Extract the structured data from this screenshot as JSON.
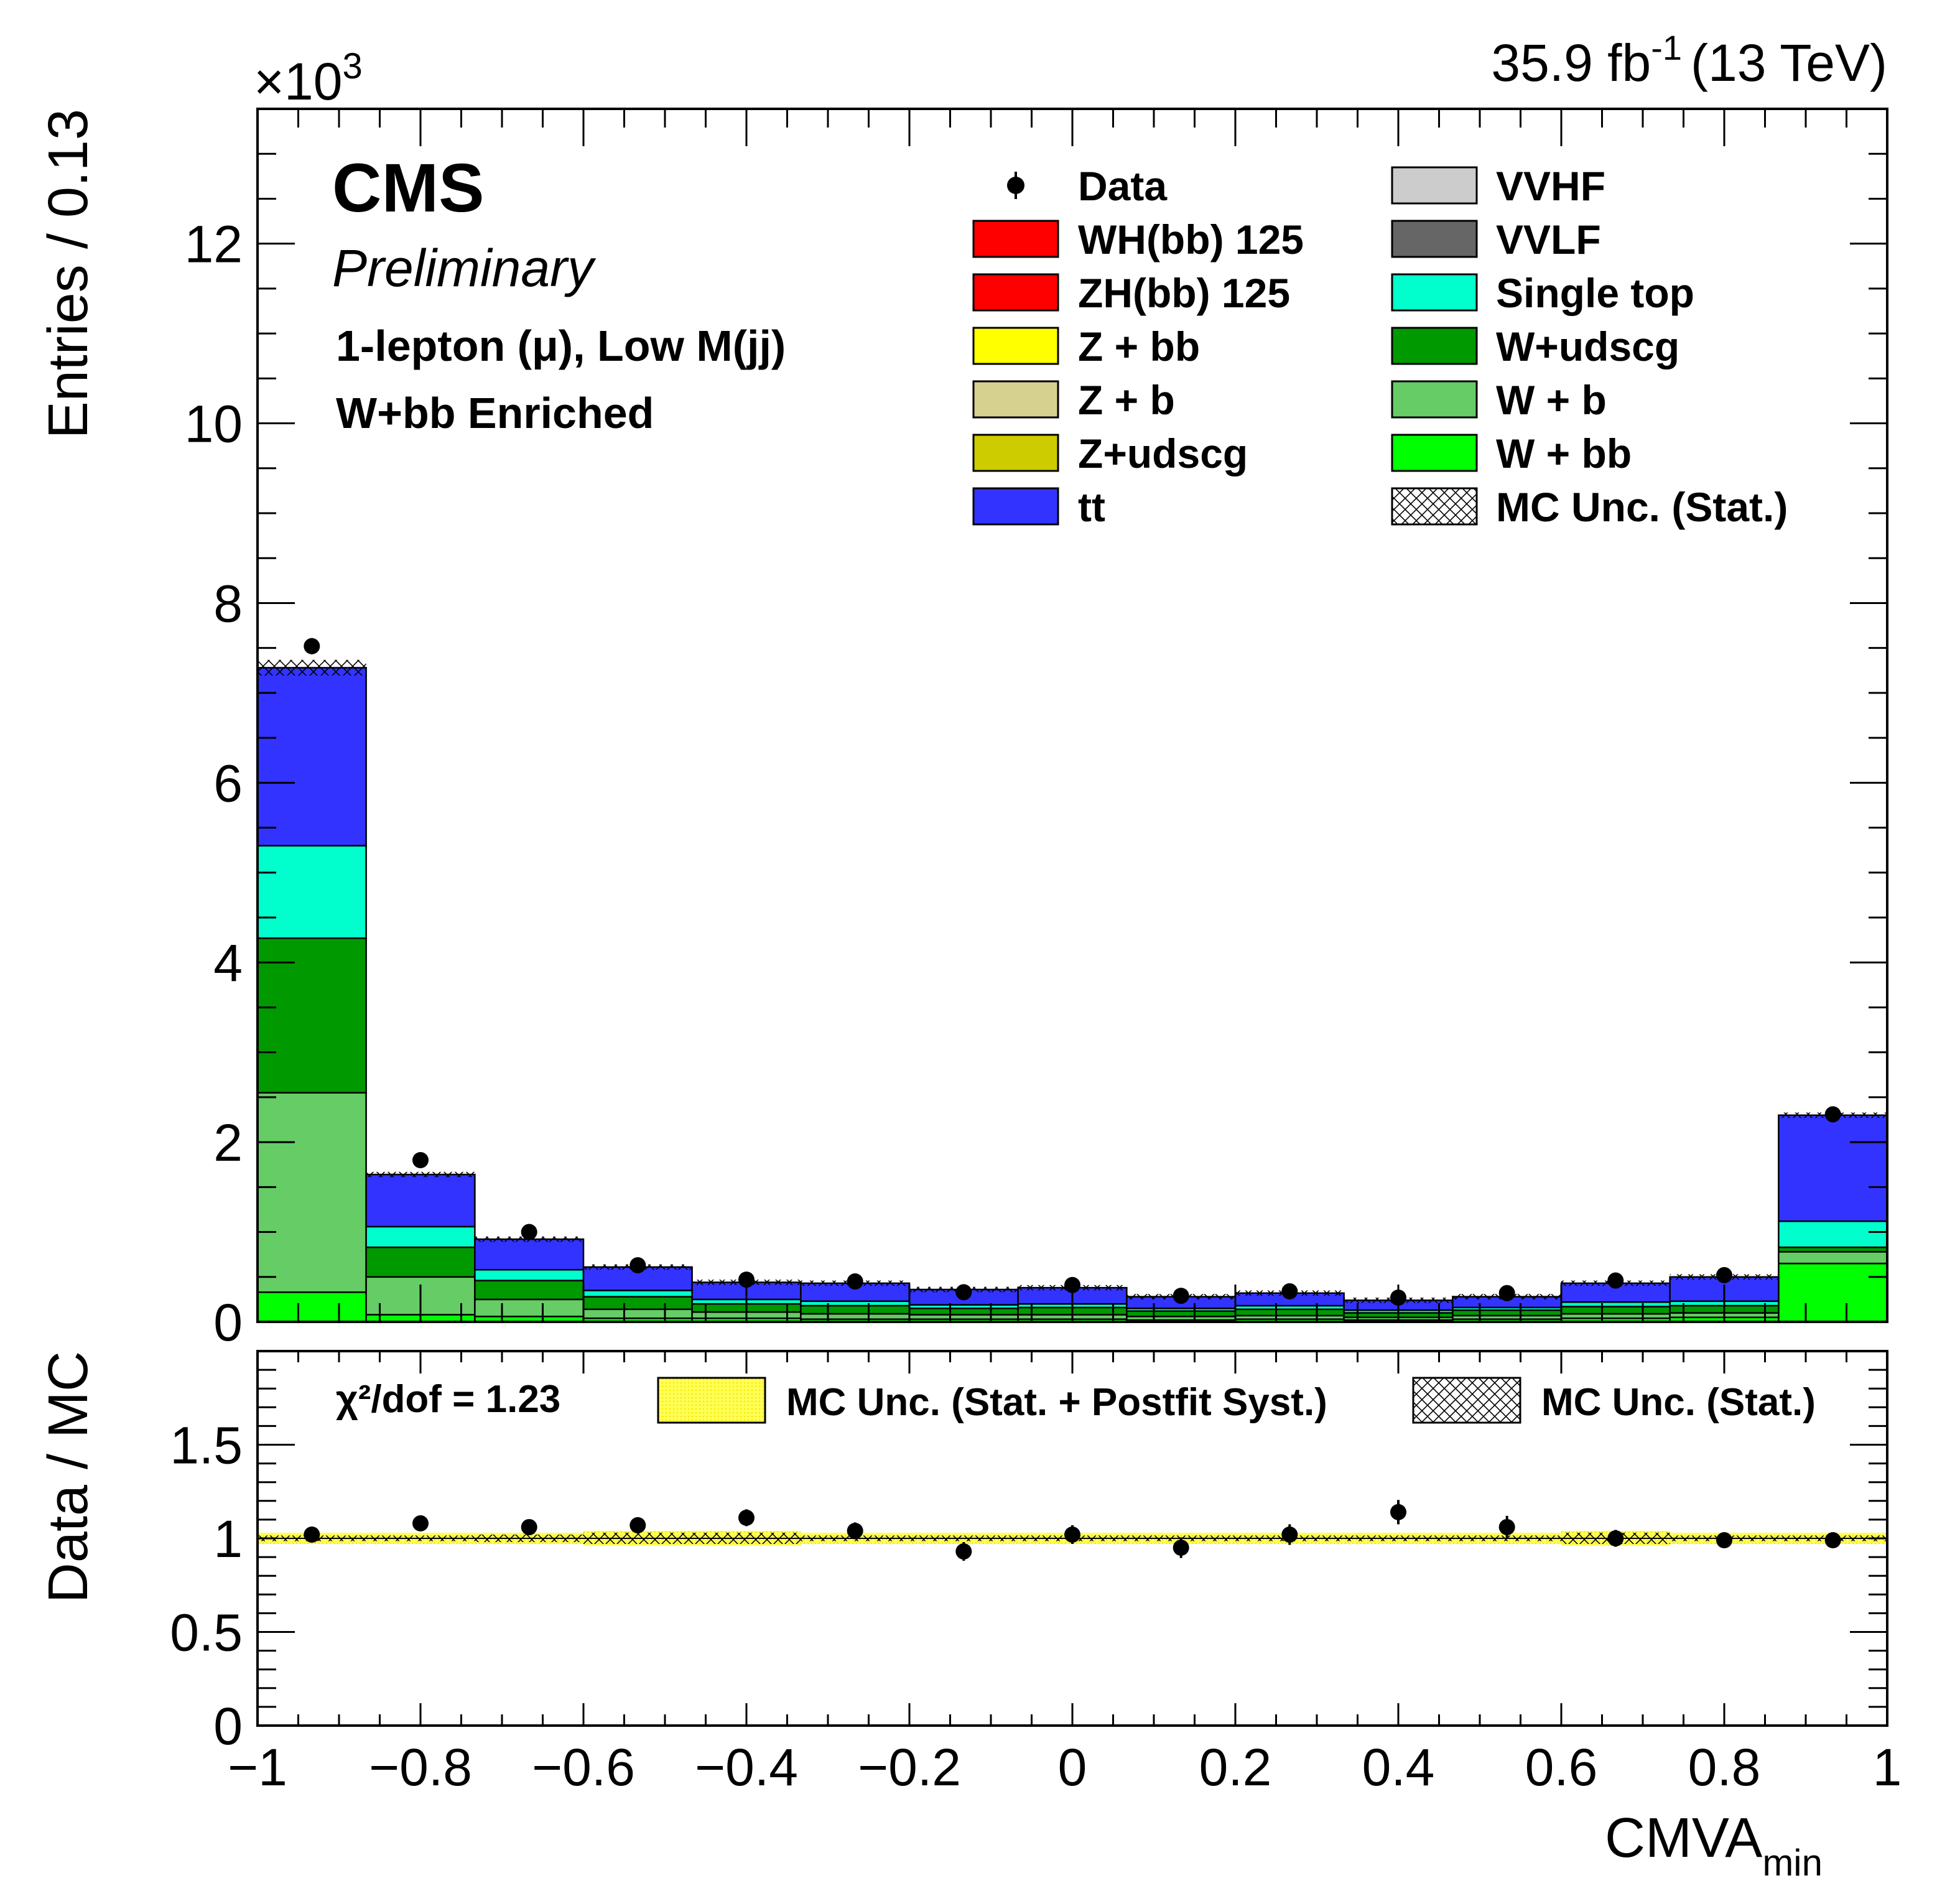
{
  "header": {
    "multiplier_base": "×10",
    "multiplier_exp": "3",
    "lumi_value": "35.9 fb",
    "lumi_exp": "-1",
    "lumi_energy": "(13 TeV)",
    "experiment": "CMS",
    "status": "Preliminary",
    "region_line1": "1-lepton (μ), Low M(jj)",
    "region_line2": "W+bb Enriched"
  },
  "upper_axis": {
    "ylabel": "Entries / 0.13",
    "ticks": [
      "0",
      "2",
      "4",
      "6",
      "8",
      "10",
      "12"
    ]
  },
  "lower_axis": {
    "ylabel": "Data / MC",
    "ticks": [
      "0",
      "0.5",
      "1",
      "1.5"
    ],
    "xlabel_main": "CMVA",
    "xlabel_sub": "min",
    "xticks": [
      "−1",
      "−0.8",
      "−0.6",
      "−0.4",
      "−0.2",
      "0",
      "0.2",
      "0.4",
      "0.6",
      "0.8",
      "1"
    ]
  },
  "legend": {
    "col1": [
      "Data",
      "WH(bb) 125",
      "ZH(bb) 125",
      "Z + bb",
      "Z + b",
      "Z+udscg",
      "tt"
    ],
    "col2": [
      "VVHF",
      "VVLF",
      "Single top",
      "W+udscg",
      "W + b",
      "W + bb",
      "MC Unc. (Stat.)"
    ]
  },
  "ratio_legend": {
    "chi2": "χ²/dof = 1.23",
    "syst": "MC Unc. (Stat. + Postfit Syst.)",
    "stat": "MC Unc. (Stat.)"
  },
  "colors": {
    "wh": "#ff0000",
    "zh": "#ff0000",
    "zbb": "#ffff00",
    "zb": "#d6d18e",
    "zudscg": "#cccc00",
    "tt": "#3333ff",
    "vvhf": "#cccccc",
    "vvlf": "#666666",
    "singletop": "#00ffcc",
    "wudscg": "#009900",
    "wb": "#66cc66",
    "wbb": "#00ff00",
    "band": "#ffff66"
  },
  "chart_data": {
    "type": "bar",
    "title": "",
    "xlabel": "CMVA_min",
    "ylabel": "Entries / 0.13 (×10^3)",
    "xlim": [
      -1,
      1
    ],
    "ylim": [
      0,
      13.5
    ],
    "bin_edges": [
      -1.0,
      -0.8667,
      -0.7333,
      -0.6,
      -0.4667,
      -0.3333,
      -0.2,
      -0.0667,
      0.0667,
      0.2,
      0.3333,
      0.4667,
      0.6,
      0.7333,
      0.8667,
      1.0
    ],
    "stack_order": [
      "W + bb",
      "W + b",
      "W+udscg",
      "Single top",
      "tt"
    ],
    "series": [
      {
        "name": "W + bb",
        "values": [
          0.33,
          0.08,
          0.06,
          0.04,
          0.04,
          0.03,
          0.03,
          0.03,
          0.02,
          0.03,
          0.02,
          0.03,
          0.04,
          0.05,
          0.65
        ]
      },
      {
        "name": "W + b",
        "values": [
          2.22,
          0.42,
          0.19,
          0.1,
          0.07,
          0.06,
          0.05,
          0.05,
          0.04,
          0.04,
          0.03,
          0.04,
          0.05,
          0.05,
          0.13
        ]
      },
      {
        "name": "W+udscg",
        "values": [
          1.72,
          0.33,
          0.21,
          0.14,
          0.09,
          0.09,
          0.07,
          0.08,
          0.06,
          0.07,
          0.05,
          0.06,
          0.08,
          0.08,
          0.05
        ]
      },
      {
        "name": "Single top",
        "values": [
          1.03,
          0.23,
          0.12,
          0.07,
          0.05,
          0.05,
          0.04,
          0.04,
          0.03,
          0.04,
          0.03,
          0.03,
          0.05,
          0.05,
          0.29
        ]
      },
      {
        "name": "tt",
        "values": [
          1.98,
          0.58,
          0.34,
          0.26,
          0.19,
          0.2,
          0.17,
          0.18,
          0.13,
          0.14,
          0.11,
          0.12,
          0.21,
          0.27,
          1.18
        ]
      }
    ],
    "data": {
      "name": "Data",
      "values": [
        7.52,
        1.8,
        1.0,
        0.63,
        0.47,
        0.45,
        0.33,
        0.41,
        0.29,
        0.34,
        0.27,
        0.32,
        0.46,
        0.52,
        2.31
      ],
      "errors": [
        0.09,
        0.04,
        0.03,
        0.025,
        0.02,
        0.02,
        0.018,
        0.02,
        0.017,
        0.018,
        0.016,
        0.018,
        0.02,
        0.022,
        0.048
      ]
    },
    "ratio": {
      "ylim": [
        0,
        2
      ],
      "values": [
        1.02,
        1.08,
        1.06,
        1.07,
        1.11,
        1.04,
        0.93,
        1.02,
        0.95,
        1.02,
        1.14,
        1.06,
        1.0,
        0.99,
        0.99
      ],
      "errors": [
        0.012,
        0.025,
        0.03,
        0.04,
        0.045,
        0.045,
        0.05,
        0.05,
        0.055,
        0.055,
        0.065,
        0.06,
        0.045,
        0.04,
        0.02
      ],
      "syst_band": [
        0.03,
        0.03,
        0.03,
        0.04,
        0.04,
        0.03,
        0.03,
        0.03,
        0.03,
        0.03,
        0.03,
        0.03,
        0.04,
        0.03,
        0.03
      ],
      "stat_band": [
        0.015,
        0.015,
        0.02,
        0.03,
        0.03,
        0.015,
        0.015,
        0.015,
        0.015,
        0.015,
        0.015,
        0.015,
        0.03,
        0.015,
        0.015
      ]
    },
    "legend_position": "top-right"
  }
}
